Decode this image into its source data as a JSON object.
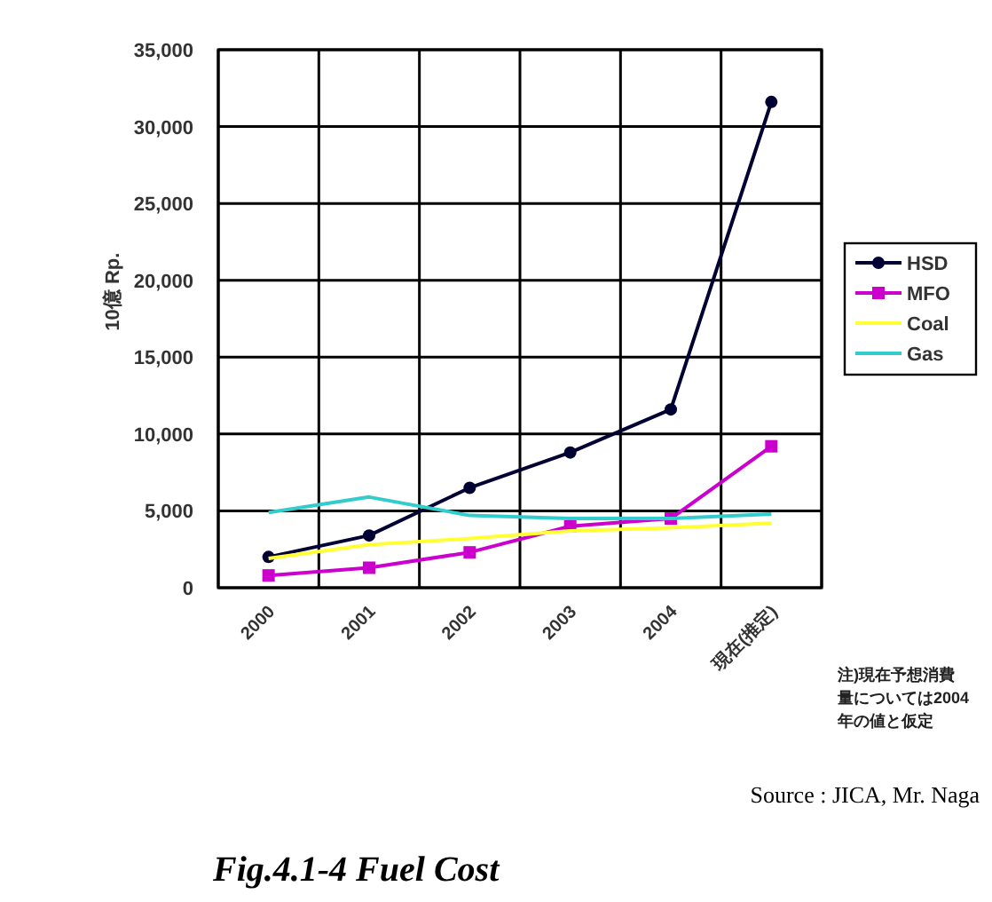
{
  "chart_data": {
    "type": "line",
    "title": "Fig.4.1-4 Fuel Cost",
    "ylabel": "10億 Rp.",
    "categories": [
      "2000",
      "2001",
      "2002",
      "2003",
      "2004",
      "現在(推定)"
    ],
    "ylim": [
      0,
      35000
    ],
    "yticks": [
      {
        "value": 0,
        "label": "0"
      },
      {
        "value": 5000,
        "label": "5,000"
      },
      {
        "value": 10000,
        "label": "10,000"
      },
      {
        "value": 15000,
        "label": "15,000"
      },
      {
        "value": 20000,
        "label": "20,000"
      },
      {
        "value": 25000,
        "label": "25,000"
      },
      {
        "value": 30000,
        "label": "30,000"
      },
      {
        "value": 35000,
        "label": "35,000"
      }
    ],
    "grid": true,
    "legend": "right",
    "line_style": "solid",
    "series": [
      {
        "name": "HSD",
        "color": "#000033",
        "marker": "circle",
        "values": [
          2000,
          3400,
          6500,
          8800,
          11600,
          31600
        ]
      },
      {
        "name": "MFO",
        "color": "#cc00cc",
        "marker": "square",
        "values": [
          800,
          1300,
          2300,
          4000,
          4500,
          9200
        ]
      },
      {
        "name": "Coal",
        "color": "#ffff33",
        "marker": "none",
        "values": [
          1900,
          2800,
          3200,
          3700,
          3900,
          4200
        ]
      },
      {
        "name": "Gas",
        "color": "#33cccc",
        "marker": "none",
        "values": [
          4900,
          5900,
          4700,
          4500,
          4500,
          4800
        ]
      }
    ],
    "annotations": [
      "注)現在予想消費量については2004年の値と仮定",
      "Source : JICA, Mr. Naga"
    ]
  }
}
